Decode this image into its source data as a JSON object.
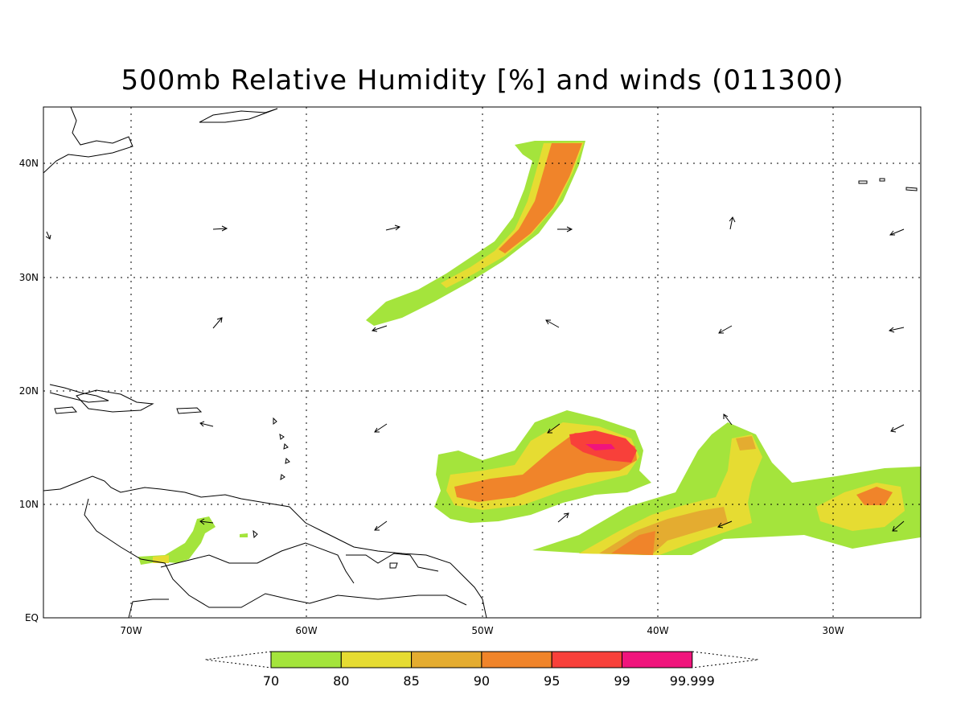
{
  "title": "500mb Relative Humidity [%] and winds (011300)",
  "map": {
    "lon_range": [
      -75,
      -25
    ],
    "lat_range": [
      0,
      45
    ],
    "lon_ticks": [
      "70W",
      "60W",
      "50W",
      "40W",
      "30W"
    ],
    "lat_ticks": [
      "EQ",
      "10N",
      "20N",
      "30N",
      "40N"
    ],
    "gridlines": "dotted"
  },
  "legend": {
    "levels": [
      "70",
      "80",
      "85",
      "90",
      "95",
      "99",
      "99.999"
    ],
    "colors": [
      "#a4e43c",
      "#e6dc32",
      "#e4ac30",
      "#f0842a",
      "#f8403a",
      "#f0147c"
    ]
  }
}
